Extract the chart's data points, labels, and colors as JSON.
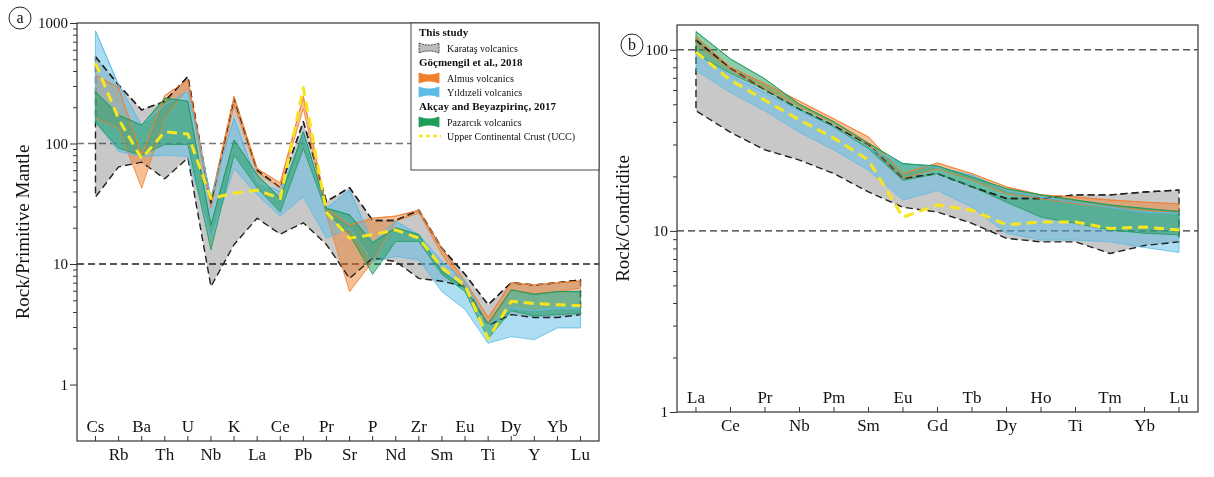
{
  "chart_data": [
    {
      "type": "line",
      "title": "a",
      "ylabel": "Rock/Primitive Mantle",
      "log": true,
      "legend": "top right",
      "categories": [
        "Cs",
        "Rb",
        "Ba",
        "Th",
        "U",
        "Nb",
        "K",
        "La",
        "Ce",
        "Pb",
        "Pr",
        "Sr",
        "P",
        "Nd",
        "Zr",
        "Sm",
        "Eu",
        "Ti",
        "Dy",
        "Y",
        "Yb",
        "Lu"
      ],
      "ylim": [
        0.34,
        1000
      ],
      "yticks": [
        1,
        {
          "value": 2,
          "label": null
        },
        {
          "value": 3,
          "label": null
        },
        {
          "value": 4,
          "label": null
        },
        {
          "value": 5,
          "label": null
        },
        {
          "value": 6,
          "label": null
        },
        {
          "value": 7,
          "label": null
        },
        {
          "value": 8,
          "label": null
        },
        {
          "value": 9,
          "label": null
        },
        10,
        {
          "value": 20,
          "label": null
        },
        {
          "value": 30,
          "label": null
        },
        {
          "value": 40,
          "label": null
        },
        {
          "value": 50,
          "label": null
        },
        {
          "value": 60,
          "label": null
        },
        {
          "value": 70,
          "label": null
        },
        {
          "value": 80,
          "label": null
        },
        {
          "value": 90,
          "label": null
        },
        100,
        {
          "value": 200,
          "label": null
        },
        {
          "value": 300,
          "label": null
        },
        {
          "value": 400,
          "label": null
        },
        {
          "value": 500,
          "label": null
        },
        {
          "value": 600,
          "label": null
        },
        {
          "value": 700,
          "label": null
        },
        {
          "value": 800,
          "label": null
        },
        {
          "value": 900,
          "label": null
        },
        1000
      ],
      "ref_lines": [
        {
          "axis": "y",
          "value": 100,
          "color": "#777777",
          "line_style": "dashed"
        },
        {
          "axis": "y",
          "value": 10,
          "color": "#222222",
          "line_style": "dashed"
        }
      ],
      "annotations": [
        "This study",
        "Göçmengil et al., 2018",
        "Akçay and Beyazpirinç, 2017"
      ],
      "series": [
        {
          "name": "Karataş volcanics",
          "color": "#222222",
          "line_style": "dashed",
          "values": [
            525,
            306,
            190,
            224,
            359,
            32,
            238,
            60,
            43,
            152,
            33,
            43,
            23,
            23,
            28,
            13.5,
            8.2,
            4.6,
            7,
            6.7,
            7,
            7.4
          ],
          "lower": [
            36,
            64,
            70,
            51,
            76,
            6.5,
            14.5,
            24,
            17.7,
            22,
            14.5,
            7.6,
            11.2,
            10.5,
            7.6,
            7.2,
            6.5,
            3.1,
            3.8,
            3.6,
            3.6,
            3.8
          ],
          "upper": [
            525,
            306,
            190,
            224,
            359,
            32,
            238,
            60,
            43,
            152,
            33,
            43,
            23,
            23,
            28,
            13.5,
            8.2,
            4.6,
            7,
            6.7,
            7,
            7.4
          ]
        },
        {
          "name": "Almus volcanics",
          "color": "#f07f2e",
          "values": [
            370,
            290,
            80,
            250,
            335,
            34,
            245,
            62,
            47,
            245,
            29,
            21,
            24,
            25,
            28,
            13.5,
            7.2,
            3.6,
            7,
            6.7,
            7,
            7.2
          ],
          "lower": [
            162,
            134,
            42.6,
            162,
            290,
            29,
            209,
            57,
            43,
            195,
            25.6,
            5.9,
            10.5,
            22.6,
            26.5,
            12,
            6.3,
            3.1,
            6.1,
            5.7,
            5.9,
            6.3
          ],
          "upper": [
            370,
            290,
            80,
            250,
            335,
            34,
            245,
            62,
            47,
            245,
            29,
            21,
            24,
            25,
            28,
            13.5,
            7.2,
            3.6,
            7,
            6.7,
            7,
            7.2
          ]
        },
        {
          "name": "Yıldızeli volcanics",
          "color": "#5bbbe6",
          "values": [
            860,
            306,
            142,
            209,
            270,
            36,
            162,
            48,
            40,
            118,
            29,
            41,
            15,
            22.6,
            17.5,
            10.5,
            7.2,
            3.1,
            4.3,
            4.1,
            4.3,
            4.3
          ],
          "lower": [
            150,
            86,
            78,
            80,
            78,
            16.4,
            62,
            37.5,
            25,
            36,
            16.4,
            20,
            10.5,
            11.6,
            10.8,
            5.9,
            4.2,
            2.2,
            2.5,
            2.36,
            2.95,
            2.95
          ],
          "upper": [
            860,
            306,
            142,
            209,
            270,
            36,
            162,
            48,
            40,
            118,
            29,
            41,
            15,
            22.6,
            17.5,
            10.5,
            7.2,
            3.1,
            4.3,
            4.1,
            4.3,
            4.3
          ]
        },
        {
          "name": "Pazarcık volcanics",
          "color": "#1e9c5a",
          "values": [
            270,
            172,
            142,
            238,
            224,
            21,
            107,
            55,
            35,
            125,
            29,
            25.6,
            15,
            20,
            17.5,
            8.7,
            6.3,
            3.2,
            6.1,
            5.6,
            5.9,
            5.9
          ],
          "lower": [
            150,
            91,
            80,
            98,
            98,
            13.1,
            80,
            43,
            27,
            91,
            27,
            17.5,
            8.2,
            15.4,
            15.4,
            8.2,
            5.9,
            2.4,
            4.1,
            3.7,
            3.8,
            3.9
          ],
          "upper": [
            270,
            172,
            142,
            238,
            224,
            21,
            107,
            55,
            35,
            125,
            29,
            25.6,
            15,
            20,
            17.5,
            8.7,
            6.3,
            3.2,
            6.1,
            5.6,
            5.9,
            5.9
          ]
        },
        {
          "name": "Upper Continental Crust (UCC)",
          "color": "#f7e51e",
          "line_style": "dashed",
          "values": [
            465,
            160,
            75,
            125,
            120,
            35,
            38.7,
            41,
            35,
            290,
            27,
            16.4,
            17.5,
            19.2,
            16.4,
            9.3,
            6.7,
            2.4,
            4.9,
            4.7,
            4.6,
            4.5
          ]
        }
      ]
    },
    {
      "type": "line",
      "title": "b",
      "ylabel": "Rock/Condridite",
      "log": true,
      "categories": [
        "La",
        "Ce",
        "Pr",
        "Nb",
        "Pm",
        "Sm",
        "Eu",
        "Gd",
        "Tb",
        "Dy",
        "Ho",
        "Ti",
        "Tm",
        "Yb",
        "Lu"
      ],
      "ylim": [
        1,
        137
      ],
      "yticks": [
        1,
        {
          "value": 2,
          "label": null
        },
        {
          "value": 3,
          "label": null
        },
        {
          "value": 4,
          "label": null
        },
        {
          "value": 5,
          "label": null
        },
        {
          "value": 6,
          "label": null
        },
        {
          "value": 7,
          "label": null
        },
        {
          "value": 8,
          "label": null
        },
        {
          "value": 9,
          "label": null
        },
        10,
        {
          "value": 20,
          "label": null
        },
        {
          "value": 30,
          "label": null
        },
        {
          "value": 40,
          "label": null
        },
        {
          "value": 50,
          "label": null
        },
        {
          "value": 60,
          "label": null
        },
        {
          "value": 70,
          "label": null
        },
        {
          "value": 80,
          "label": null
        },
        {
          "value": 90,
          "label": null
        },
        100
      ],
      "ref_lines": [
        {
          "axis": "y",
          "value": 100,
          "color": "#555555",
          "line_style": "dashed"
        },
        {
          "axis": "y",
          "value": 10,
          "color": "#333333",
          "line_style": "dashed"
        }
      ],
      "series": [
        {
          "color": "#222222",
          "line_style": "dashed",
          "values": [
            113,
            79,
            60,
            47,
            38,
            30,
            19.5,
            20.7,
            17.5,
            15.1,
            15.1,
            15.8,
            15.8,
            16.4,
            16.8
          ],
          "lower": [
            46,
            35,
            28,
            24.6,
            20.7,
            16.4,
            13.5,
            12.7,
            11,
            9.1,
            8.7,
            8.7,
            7.5,
            8.3,
            8.7
          ],
          "upper": [
            113,
            79,
            60,
            47,
            38,
            30,
            19.5,
            20.7,
            17.5,
            15.1,
            15.1,
            15.8,
            15.8,
            16.4,
            16.8
          ]
        },
        {
          "color": "#f07f2e",
          "values": [
            118,
            80,
            65,
            52,
            41.5,
            33,
            20.7,
            23.7,
            20.7,
            17.5,
            15.8,
            15.4,
            14.8,
            14.4,
            14.1
          ],
          "lower": [
            108,
            78,
            61,
            48.5,
            39,
            30,
            19.5,
            22,
            19,
            16,
            15.1,
            14.1,
            13.5,
            13,
            12.6
          ],
          "upper": [
            118,
            80,
            65,
            52,
            41.5,
            33,
            20.7,
            23.7,
            20.7,
            17.5,
            15.8,
            15.4,
            14.8,
            14.4,
            14.1
          ]
        },
        {
          "color": "#5bbbe6",
          "values": [
            97,
            72,
            58,
            46,
            37.5,
            28.5,
            23.5,
            22.5,
            20.3,
            16.7,
            15.4,
            14.4,
            13.5,
            12.7,
            12.5
          ],
          "lower": [
            77,
            58,
            46,
            35,
            28,
            21.6,
            14.8,
            16.7,
            13.5,
            9.7,
            8.9,
            8.9,
            8.7,
            8.1,
            7.6
          ],
          "upper": [
            97,
            72,
            58,
            46,
            37.5,
            28.5,
            23.5,
            22.5,
            20.3,
            16.7,
            15.4,
            14.4,
            13.5,
            12.7,
            12.5
          ]
        },
        {
          "color": "#1e9c5a",
          "values": [
            126,
            89,
            69,
            50,
            40,
            30.5,
            23.5,
            22.8,
            19.8,
            17.1,
            15.8,
            14.8,
            13.9,
            13.3,
            12.8
          ],
          "lower": [
            95,
            74,
            60,
            47,
            37.5,
            28.5,
            19,
            20.7,
            17.5,
            14.4,
            11.9,
            11,
            10.1,
            9.7,
            9.5
          ],
          "upper": [
            126,
            89,
            69,
            50,
            40,
            30.5,
            23.5,
            22.8,
            19.8,
            17.1,
            15.8,
            14.8,
            13.9,
            13.3,
            12.8
          ]
        },
        {
          "color": "#f7e51e",
          "line_style": "dashed",
          "values": [
            97,
            68,
            52.6,
            41,
            32.5,
            24.6,
            11.9,
            13.9,
            13,
            10.8,
            11.2,
            11.2,
            10.3,
            10.5,
            10.1
          ]
        }
      ]
    }
  ]
}
